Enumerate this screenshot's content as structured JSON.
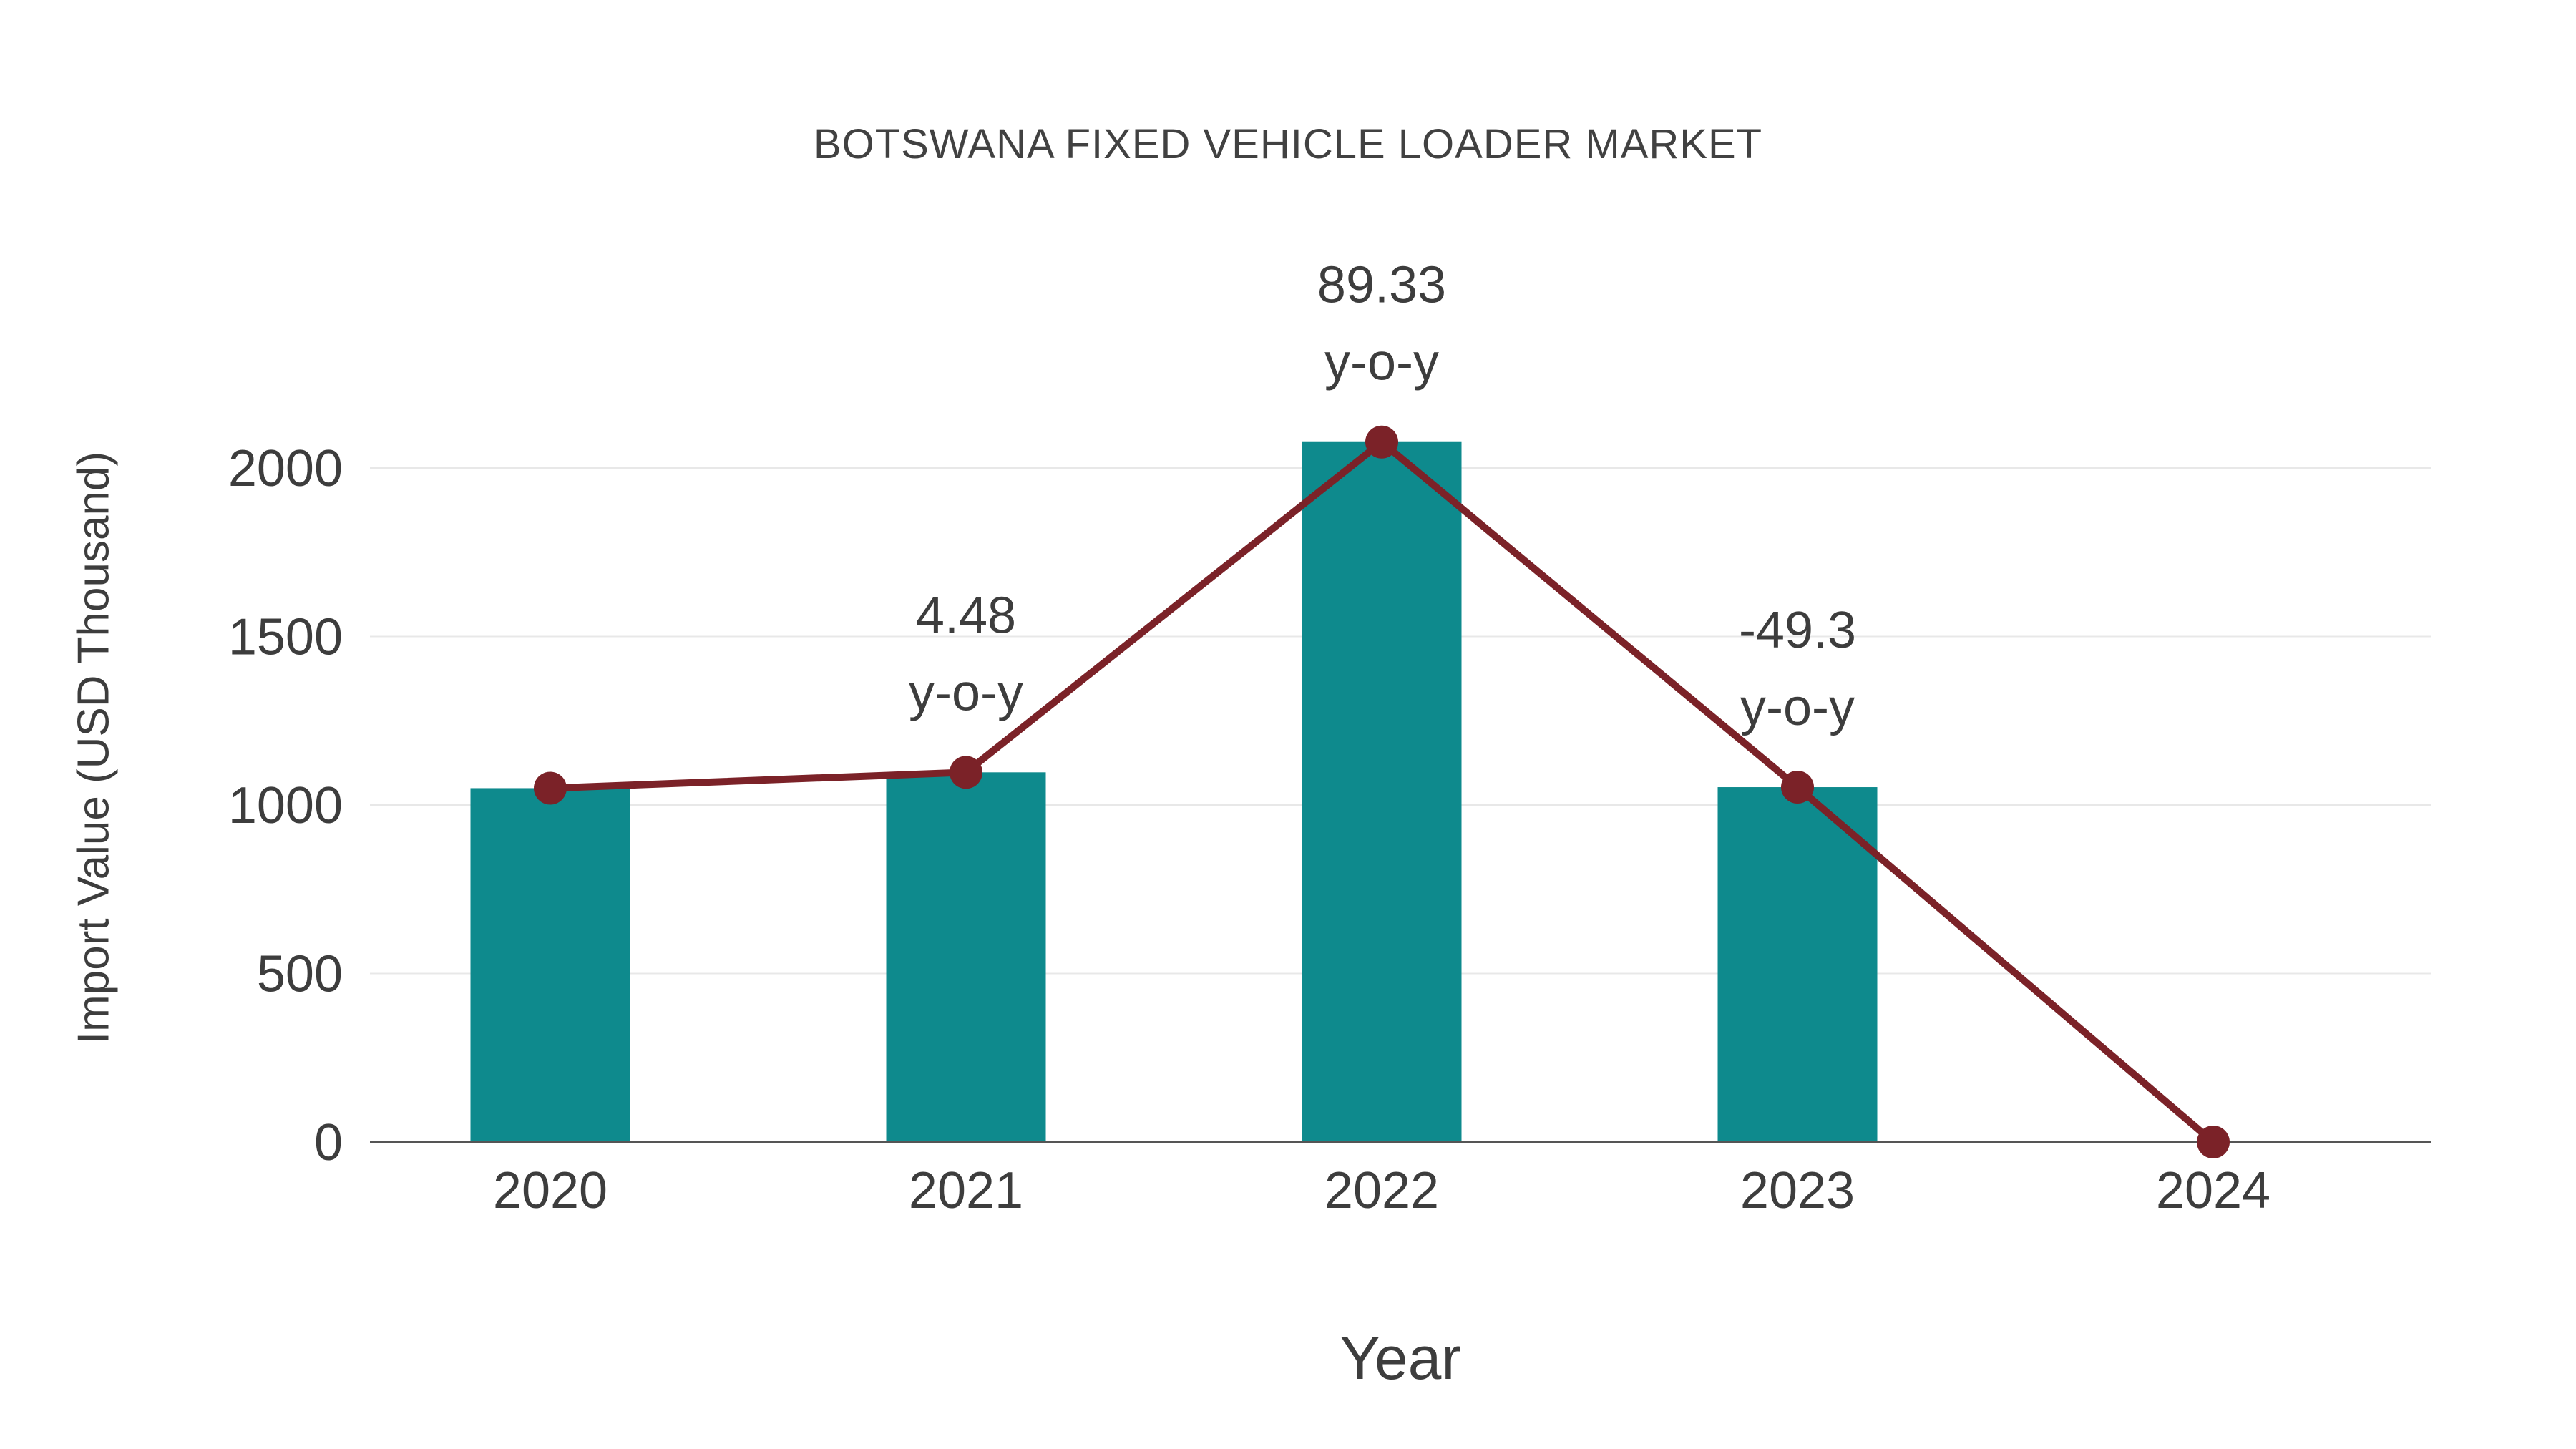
{
  "chart_data": {
    "type": "bar",
    "title": "BOTSWANA FIXED VEHICLE LOADER MARKET",
    "xlabel": "Year",
    "ylabel": "Import Value (USD Thousand)",
    "categories": [
      "2020",
      "2021",
      "2022",
      "2023",
      "2024"
    ],
    "series": [
      {
        "name": "Import Value",
        "type": "bar",
        "color": "#0e8a8d",
        "values": [
          1050,
          1097,
          2077,
          1053,
          0
        ]
      },
      {
        "name": "Import Value Trend",
        "type": "line",
        "color": "#7b2228",
        "values": [
          1050,
          1097,
          2077,
          1053,
          0
        ]
      }
    ],
    "annotations": [
      {
        "category": "2021",
        "lines": [
          "4.48",
          "y-o-y"
        ]
      },
      {
        "category": "2022",
        "lines": [
          "89.33",
          "y-o-y"
        ]
      },
      {
        "category": "2023",
        "lines": [
          "-49.3",
          "y-o-y"
        ]
      }
    ],
    "yticks": [
      0,
      500,
      1000,
      1500,
      2000
    ],
    "ylim": [
      0,
      2200
    ],
    "grid": true,
    "legend": "none"
  },
  "colors": {
    "bar": "#0e8a8d",
    "line": "#7b2228",
    "grid": "#e8e8e8",
    "axis": "#555555",
    "text": "#3d3d3d",
    "title": "#414141"
  }
}
